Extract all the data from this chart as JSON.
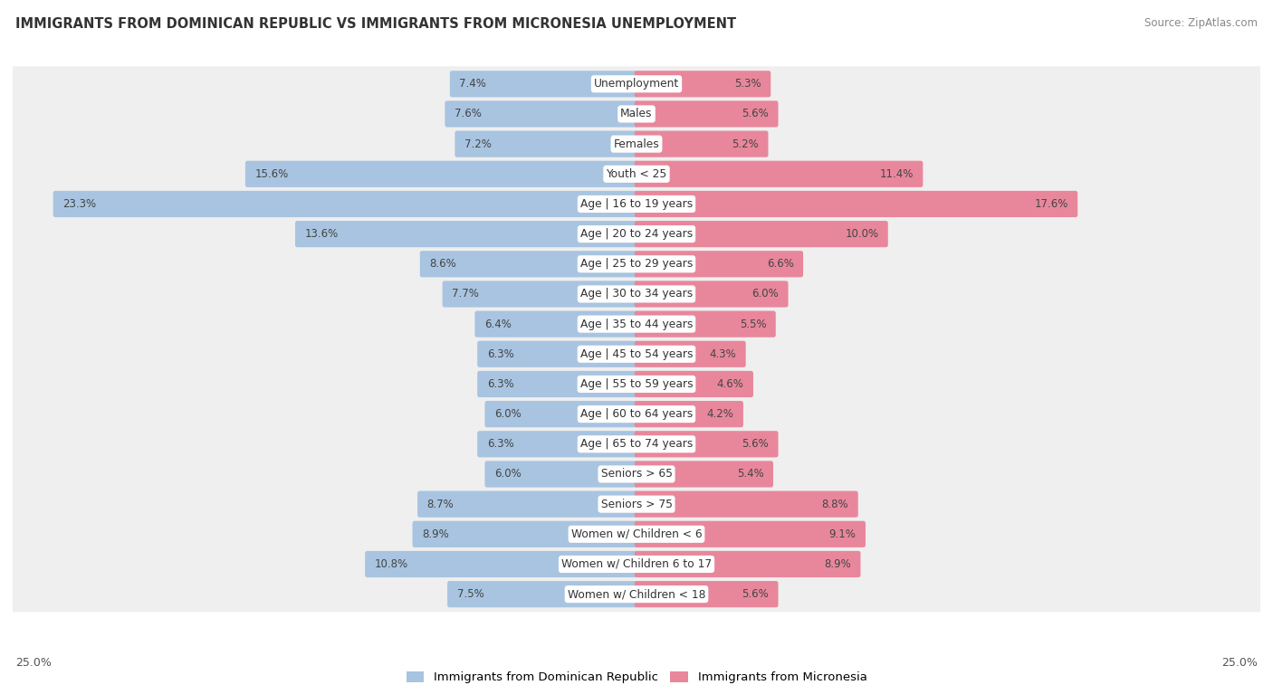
{
  "title": "IMMIGRANTS FROM DOMINICAN REPUBLIC VS IMMIGRANTS FROM MICRONESIA UNEMPLOYMENT",
  "source": "Source: ZipAtlas.com",
  "categories": [
    "Unemployment",
    "Males",
    "Females",
    "Youth < 25",
    "Age | 16 to 19 years",
    "Age | 20 to 24 years",
    "Age | 25 to 29 years",
    "Age | 30 to 34 years",
    "Age | 35 to 44 years",
    "Age | 45 to 54 years",
    "Age | 55 to 59 years",
    "Age | 60 to 64 years",
    "Age | 65 to 74 years",
    "Seniors > 65",
    "Seniors > 75",
    "Women w/ Children < 6",
    "Women w/ Children 6 to 17",
    "Women w/ Children < 18"
  ],
  "left_values": [
    7.4,
    7.6,
    7.2,
    15.6,
    23.3,
    13.6,
    8.6,
    7.7,
    6.4,
    6.3,
    6.3,
    6.0,
    6.3,
    6.0,
    8.7,
    8.9,
    10.8,
    7.5
  ],
  "right_values": [
    5.3,
    5.6,
    5.2,
    11.4,
    17.6,
    10.0,
    6.6,
    6.0,
    5.5,
    4.3,
    4.6,
    4.2,
    5.6,
    5.4,
    8.8,
    9.1,
    8.9,
    5.6
  ],
  "left_color": "#a8c4e0",
  "right_color": "#e8879c",
  "max_val": 25.0,
  "left_label": "Immigrants from Dominican Republic",
  "right_label": "Immigrants from Micronesia",
  "axis_label": "25.0%"
}
